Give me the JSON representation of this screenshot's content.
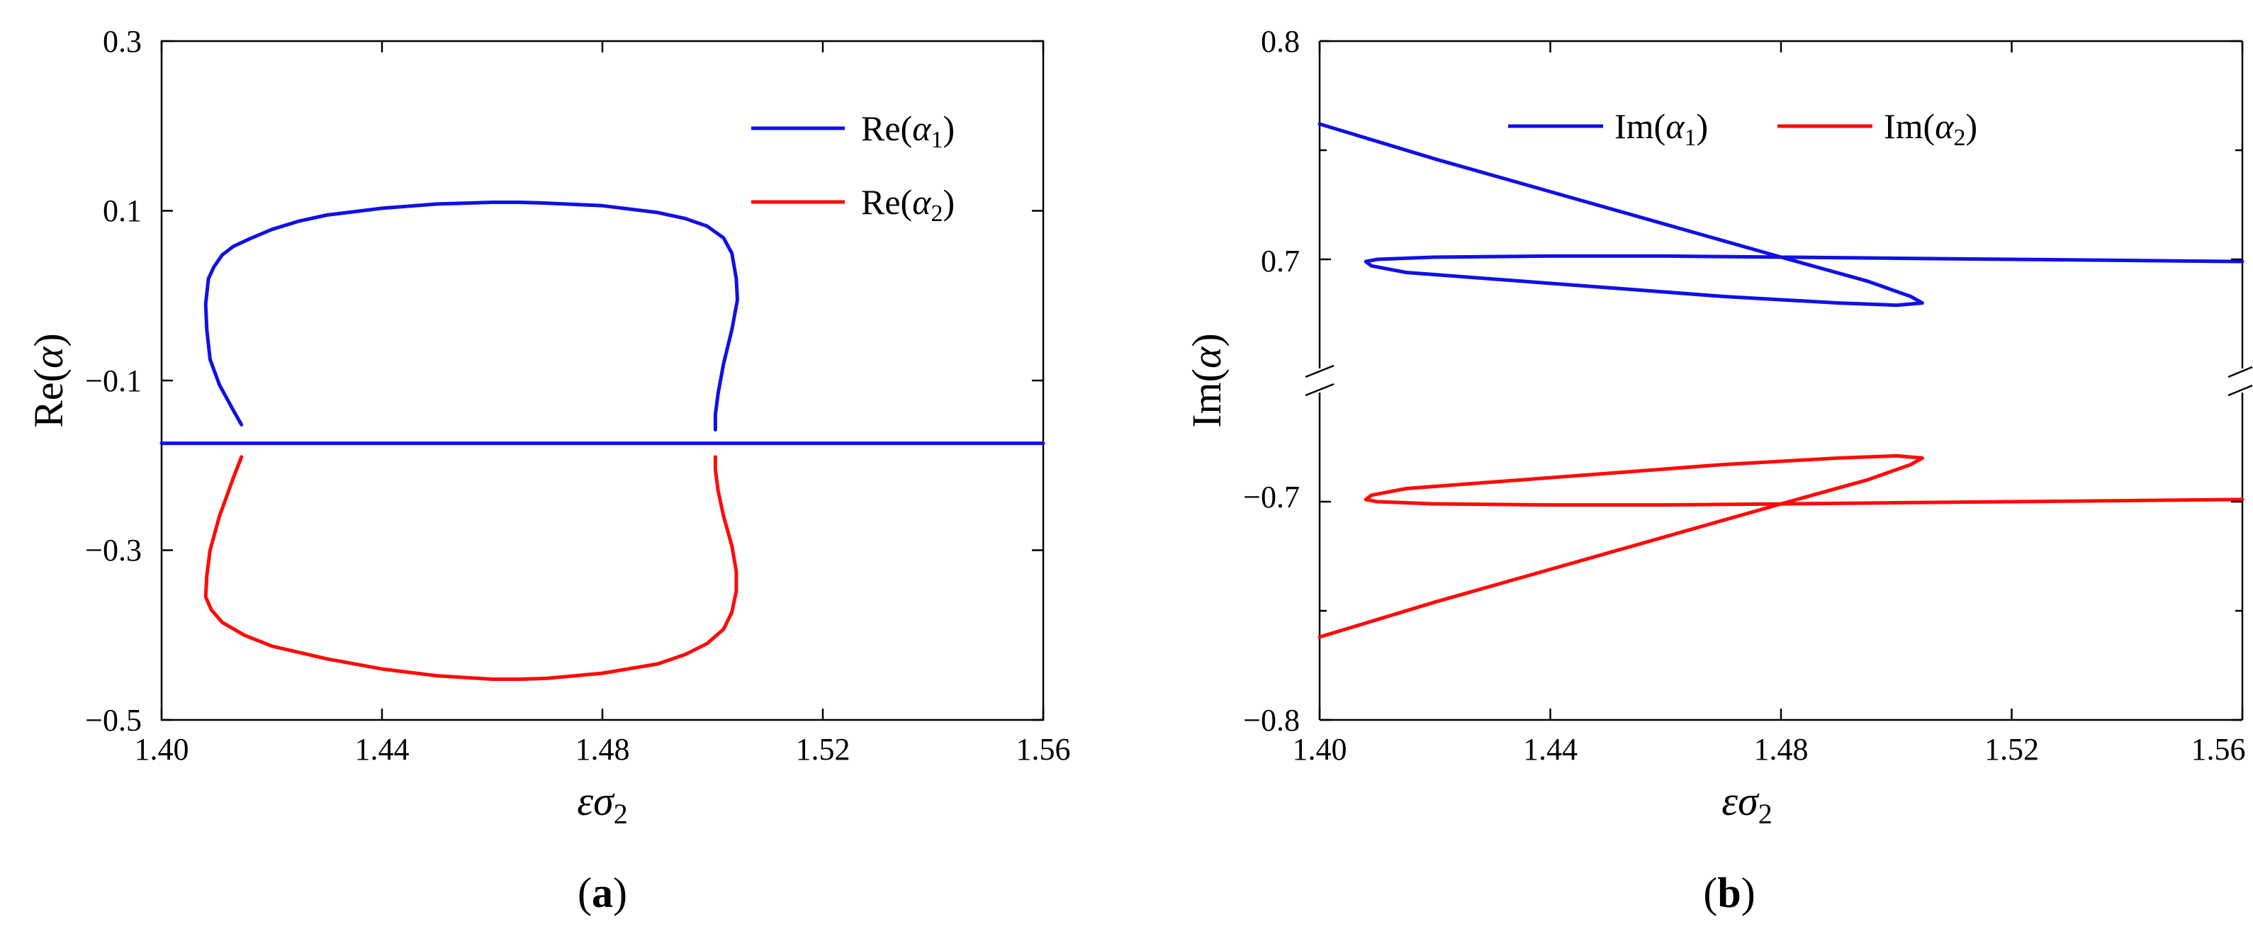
{
  "chart_data": [
    {
      "id": "a",
      "type": "line",
      "panel_label": "(a)",
      "panel_letter": "a",
      "xlabel": "εσ2",
      "xlabel_main": "εσ",
      "xlabel_sub": "2",
      "ylabel": "Re(α)",
      "ylabel_prefix": "Re(",
      "ylabel_var": "α",
      "ylabel_suffix": ")",
      "xlim": [
        1.4,
        1.56
      ],
      "ylim": [
        -0.5,
        0.3
      ],
      "xticks": [
        1.4,
        1.44,
        1.48,
        1.52,
        1.56
      ],
      "xtick_labels": [
        "1.40",
        "1.44",
        "1.48",
        "1.52",
        "1.56"
      ],
      "yticks": [
        -0.5,
        -0.3,
        -0.1,
        0.1,
        0.3
      ],
      "ytick_labels": [
        "−0.5",
        "−0.3",
        "−0.1",
        "0.1",
        "0.3"
      ],
      "legend_position": "top-right",
      "series": [
        {
          "name": "Re(α1)",
          "name_main": "Re(",
          "name_var": "α",
          "name_sub": "1",
          "name_close": ")",
          "color": "#1010e6",
          "segments": [
            [
              [
                1.4,
                -0.174
              ],
              [
                1.56,
                -0.174
              ]
            ],
            [
              [
                1.4145,
                -0.152
              ],
              [
                1.413,
                -0.135
              ],
              [
                1.4105,
                -0.105
              ],
              [
                1.4088,
                -0.075
              ],
              [
                1.4082,
                -0.04
              ],
              [
                1.408,
                -0.01
              ],
              [
                1.4085,
                0.02
              ],
              [
                1.4095,
                0.034
              ],
              [
                1.411,
                0.048
              ],
              [
                1.413,
                0.058
              ],
              [
                1.416,
                0.067
              ],
              [
                1.42,
                0.078
              ],
              [
                1.425,
                0.088
              ],
              [
                1.43,
                0.095
              ],
              [
                1.44,
                0.103
              ],
              [
                1.45,
                0.108
              ],
              [
                1.46,
                0.11
              ],
              [
                1.465,
                0.11
              ],
              [
                1.47,
                0.109
              ],
              [
                1.48,
                0.106
              ],
              [
                1.49,
                0.098
              ],
              [
                1.495,
                0.091
              ],
              [
                1.499,
                0.082
              ],
              [
                1.502,
                0.068
              ],
              [
                1.5035,
                0.05
              ],
              [
                1.5043,
                0.02
              ],
              [
                1.5045,
                -0.005
              ],
              [
                1.5035,
                -0.04
              ],
              [
                1.502,
                -0.08
              ],
              [
                1.501,
                -0.115
              ],
              [
                1.5005,
                -0.14
              ],
              [
                1.5005,
                -0.158
              ]
            ]
          ]
        },
        {
          "name": "Re(α2)",
          "name_main": "Re(",
          "name_var": "α",
          "name_sub": "2",
          "name_close": ")",
          "color": "#ff0a0a",
          "segments": [
            [
              [
                1.4145,
                -0.19
              ],
              [
                1.413,
                -0.215
              ],
              [
                1.4105,
                -0.26
              ],
              [
                1.4088,
                -0.3
              ],
              [
                1.4082,
                -0.33
              ],
              [
                1.408,
                -0.355
              ],
              [
                1.409,
                -0.37
              ],
              [
                1.411,
                -0.385
              ],
              [
                1.415,
                -0.4
              ],
              [
                1.42,
                -0.413
              ],
              [
                1.43,
                -0.428
              ],
              [
                1.44,
                -0.44
              ],
              [
                1.45,
                -0.448
              ],
              [
                1.46,
                -0.452
              ],
              [
                1.465,
                -0.452
              ],
              [
                1.47,
                -0.451
              ],
              [
                1.48,
                -0.445
              ],
              [
                1.49,
                -0.434
              ],
              [
                1.495,
                -0.423
              ],
              [
                1.499,
                -0.41
              ],
              [
                1.502,
                -0.393
              ],
              [
                1.5035,
                -0.373
              ],
              [
                1.5043,
                -0.348
              ],
              [
                1.5043,
                -0.325
              ],
              [
                1.5035,
                -0.295
              ],
              [
                1.502,
                -0.26
              ],
              [
                1.501,
                -0.23
              ],
              [
                1.5005,
                -0.205
              ],
              [
                1.5005,
                -0.19
              ]
            ]
          ]
        }
      ]
    },
    {
      "id": "b",
      "type": "line",
      "panel_label": "(b)",
      "panel_letter": "b",
      "xlabel": "εσ2",
      "xlabel_main": "εσ",
      "xlabel_sub": "2",
      "ylabel": "Im(α)",
      "ylabel_prefix": "Im(",
      "ylabel_var": "α",
      "ylabel_suffix": ")",
      "axis_break": true,
      "xlim": [
        1.4,
        1.56
      ],
      "ylim_upper": [
        0.65,
        0.8
      ],
      "ylim_lower": [
        -0.8,
        -0.65
      ],
      "xticks": [
        1.4,
        1.44,
        1.48,
        1.52,
        1.56
      ],
      "xtick_labels": [
        "1.40",
        "1.44",
        "1.48",
        "1.52",
        "1.56"
      ],
      "yticks_upper": [
        0.7,
        0.8
      ],
      "ytick_labels_upper": [
        "0.7",
        "0.8"
      ],
      "yticks_lower": [
        -0.8,
        -0.7
      ],
      "ytick_labels_lower": [
        "−0.8",
        "−0.7"
      ],
      "legend_position": "top",
      "series": [
        {
          "name": "Im(α1)",
          "name_main": "Im(",
          "name_var": "α",
          "name_sub": "1",
          "name_close": ")",
          "color": "#1010e6",
          "segments": [
            [
              [
                1.4,
                0.762
              ],
              [
                1.42,
                0.746
              ],
              [
                1.44,
                0.731
              ],
              [
                1.46,
                0.716
              ],
              [
                1.48,
                0.701
              ],
              [
                1.495,
                0.69
              ],
              [
                1.5025,
                0.683
              ],
              [
                1.5045,
                0.68
              ],
              [
                1.5,
                0.679
              ],
              [
                1.49,
                0.68
              ],
              [
                1.47,
                0.683
              ],
              [
                1.45,
                0.687
              ],
              [
                1.43,
                0.691
              ],
              [
                1.415,
                0.694
              ],
              [
                1.409,
                0.697
              ],
              [
                1.408,
                0.699
              ],
              [
                1.41,
                0.7
              ],
              [
                1.42,
                0.701
              ],
              [
                1.44,
                0.7015
              ],
              [
                1.46,
                0.7015
              ],
              [
                1.48,
                0.701
              ],
              [
                1.5,
                0.7005
              ],
              [
                1.52,
                0.7
              ],
              [
                1.54,
                0.6995
              ],
              [
                1.56,
                0.699
              ]
            ]
          ]
        },
        {
          "name": "Im(α2)",
          "name_main": "Im(",
          "name_var": "α",
          "name_sub": "2",
          "name_close": ")",
          "color": "#ff0a0a",
          "segments": [
            [
              [
                1.4,
                -0.762
              ],
              [
                1.42,
                -0.746
              ],
              [
                1.44,
                -0.731
              ],
              [
                1.46,
                -0.716
              ],
              [
                1.48,
                -0.701
              ],
              [
                1.495,
                -0.69
              ],
              [
                1.5025,
                -0.683
              ],
              [
                1.5045,
                -0.68
              ],
              [
                1.5,
                -0.679
              ],
              [
                1.49,
                -0.68
              ],
              [
                1.47,
                -0.683
              ],
              [
                1.45,
                -0.687
              ],
              [
                1.43,
                -0.691
              ],
              [
                1.415,
                -0.694
              ],
              [
                1.409,
                -0.697
              ],
              [
                1.408,
                -0.699
              ],
              [
                1.41,
                -0.7
              ],
              [
                1.42,
                -0.701
              ],
              [
                1.44,
                -0.7015
              ],
              [
                1.46,
                -0.7015
              ],
              [
                1.48,
                -0.701
              ],
              [
                1.5,
                -0.7005
              ],
              [
                1.52,
                -0.7
              ],
              [
                1.54,
                -0.6995
              ],
              [
                1.56,
                -0.699
              ]
            ]
          ]
        }
      ]
    }
  ]
}
